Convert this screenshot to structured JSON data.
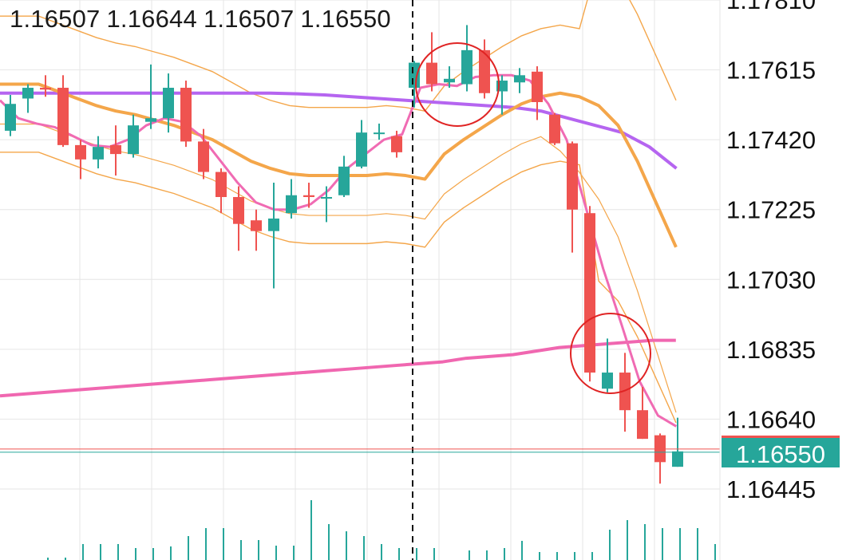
{
  "ohlc": {
    "open": "1.16507",
    "high": "1.16644",
    "low": "1.16507",
    "close": "1.16550"
  },
  "last_price": "1.16550",
  "colors": {
    "up": "#26a69a",
    "down": "#ef5350",
    "ma_fast": "#f06bb3",
    "ma_mid": "#f4a64a",
    "ma_slow": "#b565f0",
    "ma_long": "#f067b0",
    "band": "#f4a64a",
    "grid": "#e6e6e6",
    "annotation": "#e02424"
  },
  "chart_data": {
    "type": "candlestick",
    "y_axis_ticks": [
      "1.17810",
      "1.17615",
      "1.17420",
      "1.17225",
      "1.17030",
      "1.16835",
      "1.16640",
      "1.16445"
    ],
    "ylim": [
      1.1634,
      1.1792
    ],
    "candles": [
      {
        "o": 1.17445,
        "h": 1.17545,
        "l": 1.1743,
        "c": 1.1752
      },
      {
        "o": 1.17535,
        "h": 1.17575,
        "l": 1.17495,
        "c": 1.17565
      },
      {
        "o": 1.17565,
        "h": 1.176,
        "l": 1.1754,
        "c": 1.1756
      },
      {
        "o": 1.17565,
        "h": 1.176,
        "l": 1.174,
        "c": 1.17405
      },
      {
        "o": 1.17405,
        "h": 1.1742,
        "l": 1.1731,
        "c": 1.17365
      },
      {
        "o": 1.17365,
        "h": 1.1743,
        "l": 1.1734,
        "c": 1.174
      },
      {
        "o": 1.17405,
        "h": 1.1746,
        "l": 1.1732,
        "c": 1.1738
      },
      {
        "o": 1.1738,
        "h": 1.1749,
        "l": 1.1737,
        "c": 1.1746
      },
      {
        "o": 1.1747,
        "h": 1.1763,
        "l": 1.1745,
        "c": 1.1748
      },
      {
        "o": 1.1748,
        "h": 1.17605,
        "l": 1.1744,
        "c": 1.17565
      },
      {
        "o": 1.17565,
        "h": 1.17585,
        "l": 1.174,
        "c": 1.17415
      },
      {
        "o": 1.17415,
        "h": 1.1745,
        "l": 1.1731,
        "c": 1.1733
      },
      {
        "o": 1.1733,
        "h": 1.1734,
        "l": 1.17215,
        "c": 1.1726
      },
      {
        "o": 1.1726,
        "h": 1.1729,
        "l": 1.1711,
        "c": 1.17185
      },
      {
        "o": 1.17195,
        "h": 1.17225,
        "l": 1.1711,
        "c": 1.17165
      },
      {
        "o": 1.17165,
        "h": 1.173,
        "l": 1.17005,
        "c": 1.172
      },
      {
        "o": 1.17215,
        "h": 1.1731,
        "l": 1.172,
        "c": 1.17265
      },
      {
        "o": 1.17265,
        "h": 1.173,
        "l": 1.1723,
        "c": 1.1726
      },
      {
        "o": 1.1726,
        "h": 1.1729,
        "l": 1.1719,
        "c": 1.1726
      },
      {
        "o": 1.17265,
        "h": 1.17375,
        "l": 1.1726,
        "c": 1.17345
      },
      {
        "o": 1.17345,
        "h": 1.17475,
        "l": 1.1734,
        "c": 1.1744
      },
      {
        "o": 1.1744,
        "h": 1.17465,
        "l": 1.1742,
        "c": 1.1744
      },
      {
        "o": 1.1743,
        "h": 1.17445,
        "l": 1.1737,
        "c": 1.17385
      },
      {
        "o": 1.17565,
        "h": 1.1764,
        "l": 1.1751,
        "c": 1.17635
      },
      {
        "o": 1.17635,
        "h": 1.1772,
        "l": 1.17555,
        "c": 1.17575
      },
      {
        "o": 1.1758,
        "h": 1.17625,
        "l": 1.17565,
        "c": 1.1759
      },
      {
        "o": 1.17575,
        "h": 1.1774,
        "l": 1.17555,
        "c": 1.1767
      },
      {
        "o": 1.1767,
        "h": 1.177,
        "l": 1.17535,
        "c": 1.1755
      },
      {
        "o": 1.17555,
        "h": 1.176,
        "l": 1.1749,
        "c": 1.17585
      },
      {
        "o": 1.1758,
        "h": 1.1762,
        "l": 1.1755,
        "c": 1.176
      },
      {
        "o": 1.1761,
        "h": 1.17625,
        "l": 1.17475,
        "c": 1.17525
      },
      {
        "o": 1.1749,
        "h": 1.17495,
        "l": 1.17405,
        "c": 1.1741
      },
      {
        "o": 1.1741,
        "h": 1.17415,
        "l": 1.17105,
        "c": 1.17225
      },
      {
        "o": 1.17215,
        "h": 1.17235,
        "l": 1.16745,
        "c": 1.1677
      },
      {
        "o": 1.16725,
        "h": 1.16865,
        "l": 1.16715,
        "c": 1.1677
      },
      {
        "o": 1.1677,
        "h": 1.16825,
        "l": 1.16605,
        "c": 1.16665
      },
      {
        "o": 1.16665,
        "h": 1.1673,
        "l": 1.16585,
        "c": 1.16585
      },
      {
        "o": 1.16595,
        "h": 1.166,
        "l": 1.1646,
        "c": 1.1652
      },
      {
        "o": 1.16507,
        "h": 1.16644,
        "l": 1.16507,
        "c": 1.1655
      }
    ],
    "volume": [
      3,
      3,
      20,
      20,
      20,
      15,
      15,
      17,
      30,
      40,
      40,
      25,
      25,
      18,
      18,
      75,
      45,
      36,
      30,
      20,
      15,
      15,
      15,
      0,
      12,
      12,
      15,
      24,
      10,
      10,
      10,
      10,
      38,
      50,
      45,
      40,
      40,
      40,
      20
    ],
    "ma_fast": [
      1.1753,
      1.1748,
      1.17465,
      1.17455,
      1.1743,
      1.17405,
      1.174,
      1.1742,
      1.1746,
      1.1748,
      1.1747,
      1.1743,
      1.17365,
      1.173,
      1.17245,
      1.17225,
      1.17225,
      1.1724,
      1.1728,
      1.1734,
      1.1738,
      1.1742,
      1.17435,
      1.17565,
      1.17575,
      1.1757,
      1.17595,
      1.176,
      1.176,
      1.17585,
      1.1752,
      1.1742,
      1.1724,
      1.1706,
      1.16905,
      1.16745,
      1.1665,
      1.1662
    ],
    "ma_mid": [
      1.17575,
      1.17575,
      1.17575,
      1.17555,
      1.17535,
      1.17515,
      1.175,
      1.1749,
      1.17475,
      1.1746,
      1.1744,
      1.1742,
      1.1739,
      1.1736,
      1.1734,
      1.17325,
      1.1732,
      1.1732,
      1.1732,
      1.1732,
      1.17325,
      1.1732,
      1.1731,
      1.1738,
      1.1742,
      1.17455,
      1.1749,
      1.1752,
      1.1754,
      1.1755,
      1.1754,
      1.17515,
      1.1746,
      1.1736,
      1.1724,
      1.1712
    ],
    "ma_slow": [
      1.1755,
      1.1755,
      1.1755,
      1.1755,
      1.1755,
      1.1755,
      1.1755,
      1.1755,
      1.1755,
      1.1755,
      1.1755,
      1.17548,
      1.17545,
      1.1754,
      1.17535,
      1.1753,
      1.17525,
      1.1752,
      1.17515,
      1.1751,
      1.175,
      1.1748,
      1.1746,
      1.1744,
      1.174,
      1.1734
    ],
    "ma_long": [
      1.16705,
      1.1671,
      1.16715,
      1.1672,
      1.16725,
      1.1673,
      1.16735,
      1.1674,
      1.16745,
      1.1675,
      1.16755,
      1.1676,
      1.16765,
      1.1677,
      1.16775,
      1.1678,
      1.16785,
      1.1679,
      1.16795,
      1.168,
      1.1681,
      1.16815,
      1.1682,
      1.1683,
      1.1684,
      1.16845,
      1.1685,
      1.16855,
      1.1686,
      1.1686
    ]
  }
}
